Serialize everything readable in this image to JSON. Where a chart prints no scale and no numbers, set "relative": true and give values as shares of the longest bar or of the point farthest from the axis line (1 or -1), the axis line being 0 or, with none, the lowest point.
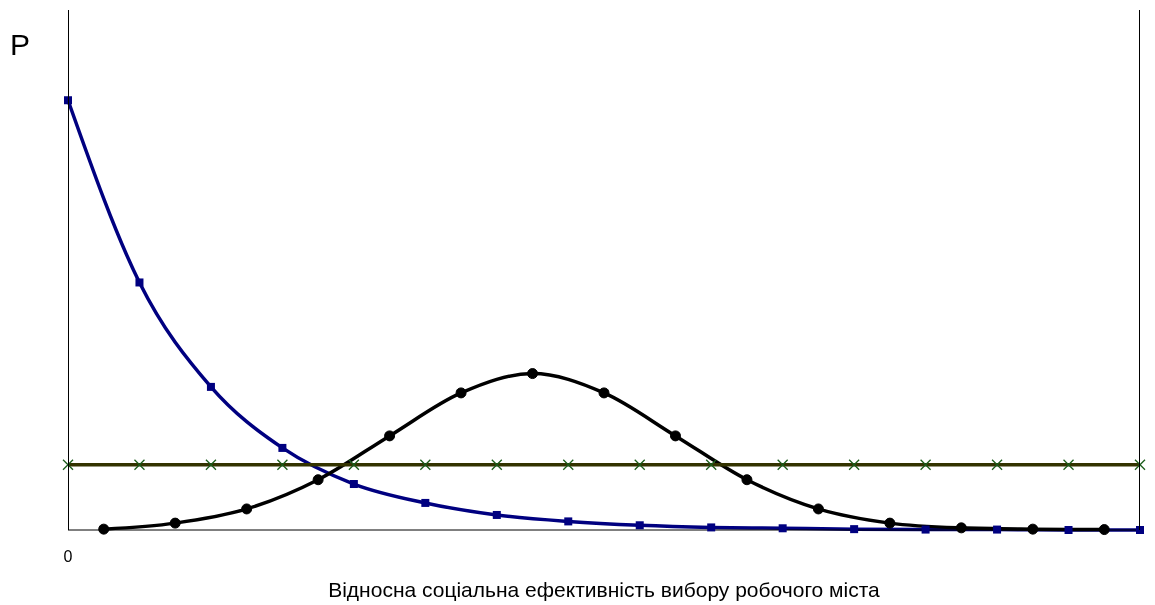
{
  "chart_data": {
    "type": "line",
    "relative": true,
    "ylabel": "P",
    "xlabel": "Відносна соціальна ефективність вибору робочого міста",
    "annotations": [
      "0"
    ],
    "categories": [
      null,
      null,
      null,
      null,
      null,
      null,
      null,
      null,
      null,
      null,
      null,
      null,
      null,
      null,
      null,
      null,
      null,
      null,
      null,
      null,
      null,
      null,
      null,
      null,
      null,
      null,
      null,
      null,
      null,
      null,
      null
    ],
    "grid": false,
    "legend": false,
    "line_style": "solid",
    "series": [
      {
        "color": "#000080",
        "marker": "square",
        "values": [
          1,
          null,
          0.576,
          null,
          0.333,
          null,
          0.191,
          null,
          0.107,
          null,
          0.063,
          null,
          0.035,
          null,
          0.02,
          null,
          0.011,
          null,
          0.006,
          null,
          0.004,
          null,
          0.002,
          null,
          0.001,
          null,
          0.001,
          null,
          0,
          null,
          0
        ]
      },
      {
        "color": "#000000",
        "marker": "circle",
        "values": [
          null,
          0.002,
          null,
          0.016,
          null,
          0.049,
          null,
          0.117,
          null,
          0.219,
          null,
          0.319,
          null,
          0.364,
          null,
          0.319,
          null,
          0.219,
          null,
          0.117,
          null,
          0.049,
          null,
          0.016,
          null,
          0.005,
          null,
          0.002,
          null,
          0.001,
          null
        ]
      },
      {
        "color": "#333300",
        "marker": "cross",
        "values": [
          0.152,
          null,
          0.152,
          null,
          0.152,
          null,
          0.152,
          null,
          0.152,
          null,
          0.152,
          null,
          0.152,
          null,
          0.152,
          null,
          0.152,
          null,
          0.152,
          null,
          0.152,
          null,
          0.152,
          null,
          0.152,
          null,
          0.152,
          null,
          0.152,
          null,
          0.152
        ]
      }
    ]
  }
}
